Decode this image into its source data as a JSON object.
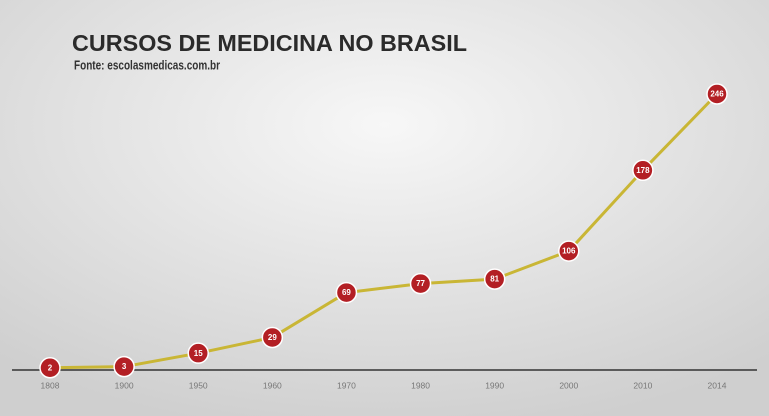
{
  "chart_data": {
    "type": "line",
    "title": "CURSOS DE MEDICINA NO BRASIL",
    "subtitle": "Fonte: escolasmedicas.com.br",
    "categories": [
      "1808",
      "1900",
      "1950",
      "1960",
      "1970",
      "1980",
      "1990",
      "2000",
      "2010",
      "2014"
    ],
    "series": [
      {
        "name": "Cursos de medicina",
        "color": "#c9b635",
        "marker_color": "#b31f24",
        "values": [
          2,
          3,
          15,
          29,
          69,
          77,
          81,
          106,
          178,
          246
        ]
      }
    ]
  }
}
